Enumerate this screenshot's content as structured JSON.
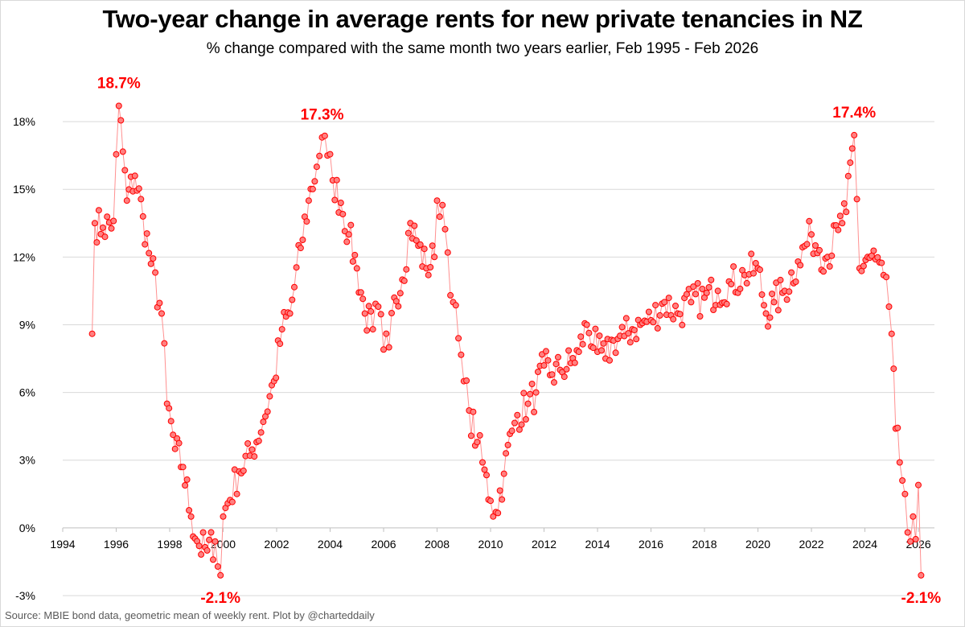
{
  "title": "Two-year change in average rents for new private tenancies in NZ",
  "subtitle": "% change compared with the same month two years earlier, Feb 1995 - Feb 2026",
  "source": "Source: MBIE bond data, geometric mean of weekly rent. Plot by @charteddaily",
  "colors": {
    "series": "#ff0000",
    "marker_fill": "#ff8080",
    "line": "#ff9090",
    "grid": "#d9d9d9"
  },
  "chart_data": {
    "type": "line",
    "xlim": [
      1994,
      2026.6
    ],
    "ylim": [
      -3,
      20
    ],
    "x_ticks": [
      1994,
      1996,
      1998,
      2000,
      2002,
      2004,
      2006,
      2008,
      2010,
      2012,
      2014,
      2016,
      2018,
      2020,
      2022,
      2024,
      2026
    ],
    "x_tick_labels": [
      "1994",
      "1996",
      "1998",
      "2000",
      "2002",
      "2004",
      "2006",
      "2008",
      "2010",
      "2012",
      "2014",
      "2016",
      "2018",
      "2020",
      "2022",
      "2024",
      "2026"
    ],
    "y_ticks": [
      -3,
      0,
      3,
      6,
      9,
      12,
      15,
      18
    ],
    "y_tick_labels": [
      "-3%",
      "0%",
      "3%",
      "6%",
      "9%",
      "12%",
      "15%",
      "18%"
    ],
    "grid": "horizontal",
    "annotations": [
      {
        "x": 1996.1,
        "y": 18.7,
        "label": "18.7%",
        "position": "above"
      },
      {
        "x": 1999.9,
        "y": -2.1,
        "label": "-2.1%",
        "position": "below"
      },
      {
        "x": 2003.7,
        "y": 17.3,
        "label": "17.3%",
        "position": "above"
      },
      {
        "x": 2023.6,
        "y": 17.4,
        "label": "17.4%",
        "position": "above"
      },
      {
        "x": 2026.1,
        "y": -2.1,
        "label": "-2.1%",
        "position": "below"
      }
    ],
    "series_anchors": [
      [
        1995.1,
        8.6
      ],
      [
        1995.2,
        13.5
      ],
      [
        1995.5,
        13.3
      ],
      [
        1995.9,
        13.6
      ],
      [
        1996.1,
        18.7
      ],
      [
        1996.4,
        14.5
      ],
      [
        1996.7,
        15.6
      ],
      [
        1997.0,
        13.8
      ],
      [
        1997.3,
        11.7
      ],
      [
        1997.7,
        9.5
      ],
      [
        1997.9,
        5.5
      ],
      [
        1998.2,
        3.5
      ],
      [
        1998.5,
        2.7
      ],
      [
        1998.8,
        0.5
      ],
      [
        1999.1,
        -0.8
      ],
      [
        1999.4,
        -1.0
      ],
      [
        1999.7,
        -0.6
      ],
      [
        1999.9,
        -2.1
      ],
      [
        2000.0,
        0.5
      ],
      [
        2000.6,
        2.5
      ],
      [
        2001.0,
        3.2
      ],
      [
        2001.5,
        4.7
      ],
      [
        2001.9,
        6.5
      ],
      [
        2002.2,
        8.8
      ],
      [
        2002.5,
        9.5
      ],
      [
        2002.9,
        12.4
      ],
      [
        2003.2,
        14.5
      ],
      [
        2003.5,
        16.0
      ],
      [
        2003.7,
        17.3
      ],
      [
        2003.9,
        16.5
      ],
      [
        2004.1,
        15.4
      ],
      [
        2004.4,
        14.4
      ],
      [
        2004.7,
        13.0
      ],
      [
        2005.0,
        11.5
      ],
      [
        2005.3,
        9.5
      ],
      [
        2005.6,
        8.8
      ],
      [
        2005.8,
        9.8
      ],
      [
        2006.0,
        7.9
      ],
      [
        2006.2,
        8.0
      ],
      [
        2006.4,
        10.2
      ],
      [
        2006.7,
        11.0
      ],
      [
        2007.0,
        13.5
      ],
      [
        2007.3,
        12.5
      ],
      [
        2007.6,
        11.5
      ],
      [
        2007.9,
        12.0
      ],
      [
        2008.0,
        14.5
      ],
      [
        2008.2,
        14.3
      ],
      [
        2008.4,
        12.2
      ],
      [
        2008.6,
        10.0
      ],
      [
        2008.8,
        8.4
      ],
      [
        2009.0,
        6.5
      ],
      [
        2009.2,
        5.2
      ],
      [
        2009.5,
        3.8
      ],
      [
        2009.7,
        2.9
      ],
      [
        2010.0,
        1.2
      ],
      [
        2010.2,
        0.7
      ],
      [
        2010.5,
        2.4
      ],
      [
        2010.8,
        4.3
      ],
      [
        2011.0,
        5.0
      ],
      [
        2011.4,
        5.5
      ],
      [
        2011.7,
        6.0
      ],
      [
        2012.0,
        7.2
      ],
      [
        2012.3,
        6.8
      ],
      [
        2012.6,
        7.0
      ],
      [
        2013.0,
        7.3
      ],
      [
        2013.3,
        7.8
      ],
      [
        2013.6,
        9.0
      ],
      [
        2014.0,
        7.8
      ],
      [
        2014.3,
        7.5
      ],
      [
        2014.6,
        8.3
      ],
      [
        2015.0,
        8.5
      ],
      [
        2015.3,
        8.8
      ],
      [
        2015.6,
        9.0
      ],
      [
        2016.0,
        9.2
      ],
      [
        2016.5,
        10.0
      ],
      [
        2017.0,
        9.5
      ],
      [
        2017.5,
        10.0
      ],
      [
        2018.0,
        10.2
      ],
      [
        2018.5,
        10.5
      ],
      [
        2019.0,
        10.8
      ],
      [
        2019.5,
        11.2
      ],
      [
        2020.0,
        11.5
      ],
      [
        2020.3,
        9.5
      ],
      [
        2020.6,
        10.0
      ],
      [
        2021.0,
        10.5
      ],
      [
        2021.5,
        11.8
      ],
      [
        2022.0,
        13.0
      ],
      [
        2022.3,
        12.3
      ],
      [
        2022.6,
        12.0
      ],
      [
        2023.0,
        13.2
      ],
      [
        2023.3,
        14.0
      ],
      [
        2023.6,
        17.4
      ],
      [
        2023.8,
        11.5
      ],
      [
        2024.1,
        12.0
      ],
      [
        2024.4,
        11.9
      ],
      [
        2024.7,
        11.2
      ],
      [
        2024.9,
        9.8
      ],
      [
        2025.0,
        8.6
      ],
      [
        2025.15,
        4.4
      ],
      [
        2025.3,
        2.9
      ],
      [
        2025.5,
        1.5
      ],
      [
        2025.6,
        -0.2
      ],
      [
        2025.7,
        -0.6
      ],
      [
        2025.8,
        0.5
      ],
      [
        2025.9,
        -0.5
      ],
      [
        2026.0,
        1.9
      ],
      [
        2026.1,
        -2.1
      ]
    ]
  }
}
